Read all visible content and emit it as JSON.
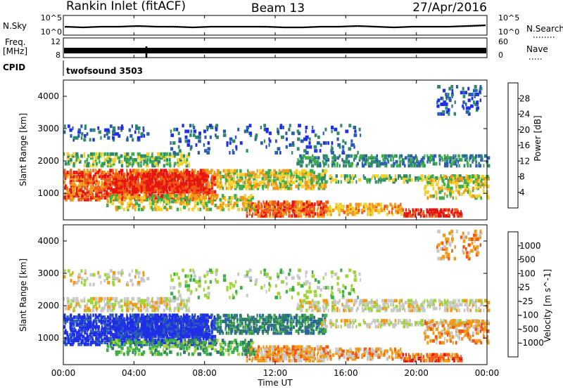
{
  "header": {
    "station": "Rankin Inlet (fitACF)",
    "beam": "Beam 13",
    "date": "27/Apr/2016"
  },
  "colors": {
    "axis": "#000000",
    "power_scale": [
      "#1f2fe6",
      "#2a5fb0",
      "#2f8a6a",
      "#3fae4a",
      "#f2d22a",
      "#f29a17",
      "#f05a14",
      "#e6150f"
    ],
    "velocity_scale": [
      "#e6150f",
      "#f05a14",
      "#f29a17",
      "#c8c8c8",
      "#9fd43a",
      "#3fae4a",
      "#2e7a6a",
      "#2a5fb0",
      "#1f2fe6"
    ],
    "ground_scatter": "#c0c0c0"
  },
  "chart_data": [
    {
      "type": "line",
      "title": "",
      "series": [
        {
          "name": "N.Sky",
          "y": [
            22,
            21,
            22,
            22,
            23,
            22,
            22,
            21,
            22,
            22,
            22,
            22,
            21,
            21,
            22,
            22,
            23,
            22,
            21,
            22,
            22,
            22,
            23,
            24
          ]
        },
        {
          "name": "N.Search",
          "y": [
            20,
            20,
            21,
            21,
            21,
            21,
            20,
            20,
            21,
            21,
            21,
            20,
            20,
            20,
            21,
            21,
            21,
            21,
            20,
            21,
            21,
            21,
            21,
            22
          ]
        }
      ],
      "left_axis": {
        "label": "N.Sky",
        "ticks": [
          "10^5",
          "10^0"
        ]
      },
      "right_axis": {
        "label": "N.Search",
        "ticks": [
          "10^5",
          "10^0"
        ]
      }
    },
    {
      "type": "line",
      "title": "",
      "left_axis": {
        "label": "Freq.",
        "unit": "[MHz]",
        "ticks": [
          "12",
          "8"
        ]
      },
      "right_axis": {
        "label": "Nave",
        "ticks": [
          "60",
          "0"
        ]
      },
      "series": [
        {
          "name": "Freq.",
          "y": [
            11,
            11,
            11,
            11,
            11,
            11,
            11,
            11,
            11,
            11,
            11,
            11,
            11,
            11,
            11,
            11,
            11,
            11,
            11,
            11,
            11,
            11,
            11,
            11
          ]
        },
        {
          "name": "Nave",
          "y": [
            28,
            28,
            28,
            28,
            28,
            28,
            28,
            28,
            28,
            28,
            28,
            28,
            28,
            28,
            28,
            28,
            28,
            28,
            28,
            28,
            28,
            28,
            28,
            28
          ]
        }
      ]
    },
    {
      "type": "heatmap",
      "cpid_label": "CPID",
      "cpid_value": "twofsound 3503",
      "ylabel": "Slant Range [km]",
      "ylim": [
        180,
        4500
      ],
      "y_ticks": [
        "1000",
        "2000",
        "3000",
        "4000"
      ],
      "xlabel": "",
      "colorbar": {
        "label": "Power [dB]",
        "ticks": [
          "4",
          "8",
          "12",
          "16",
          "20",
          "24",
          "28"
        ]
      }
    },
    {
      "type": "heatmap",
      "ylabel": "Slant Range [km]",
      "ylim": [
        180,
        4500
      ],
      "y_ticks": [
        "1000",
        "2000",
        "3000",
        "4000"
      ],
      "xlabel": "Time UT",
      "x_ticks": [
        "00:00",
        "04:00",
        "08:00",
        "12:00",
        "16:00",
        "20:00",
        "00:00"
      ],
      "colorbar": {
        "label": "Velocity [m s^-1]",
        "ticks": [
          "1000",
          "500",
          "100",
          "25",
          "-25",
          "-100",
          "-500",
          "-1000"
        ]
      }
    }
  ]
}
